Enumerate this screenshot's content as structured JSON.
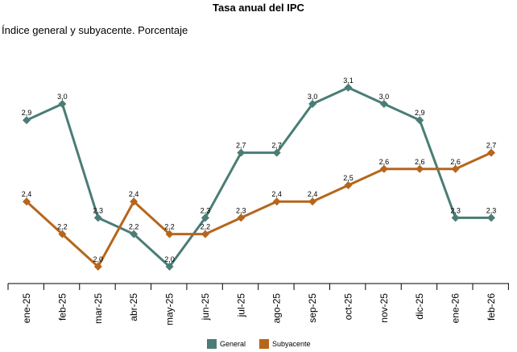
{
  "chart_data": {
    "type": "line",
    "title": "Tasa anual del IPC",
    "subtitle": "Índice general y subyacente. Porcentaje",
    "categories": [
      "ene-25",
      "feb-25",
      "mar-25",
      "abr-25",
      "may-25",
      "jun-25",
      "jul-25",
      "ago-25",
      "sep-25",
      "oct-25",
      "nov-25",
      "dic-25",
      "ene-26",
      "feb-26"
    ],
    "series": [
      {
        "name": "General",
        "color": "#4a7d76",
        "values": [
          2.9,
          3.0,
          2.3,
          2.2,
          2.0,
          2.3,
          2.7,
          2.7,
          3.0,
          3.1,
          3.0,
          2.9,
          2.3,
          2.3
        ],
        "labels": [
          "2,9",
          "3,0",
          "2,3",
          "2,2",
          "2,0",
          "2,3",
          "2,7",
          "2,7",
          "3,0",
          "3,1",
          "3,0",
          "2,9",
          "2,3",
          "2,3"
        ]
      },
      {
        "name": "Subyacente",
        "color": "#b5661c",
        "values": [
          2.4,
          2.2,
          2.0,
          2.4,
          2.2,
          2.2,
          2.3,
          2.4,
          2.4,
          2.5,
          2.6,
          2.6,
          2.6,
          2.7
        ],
        "labels": [
          "2,4",
          "2,2",
          "2,0",
          "2,4",
          "2,2",
          "2,2",
          "2,3",
          "2,4",
          "2,4",
          "2,5",
          "2,6",
          "2,6",
          "2,6",
          "2,7"
        ]
      }
    ],
    "xlabel": "",
    "ylabel": "",
    "grid": false,
    "legend": "bottom"
  }
}
